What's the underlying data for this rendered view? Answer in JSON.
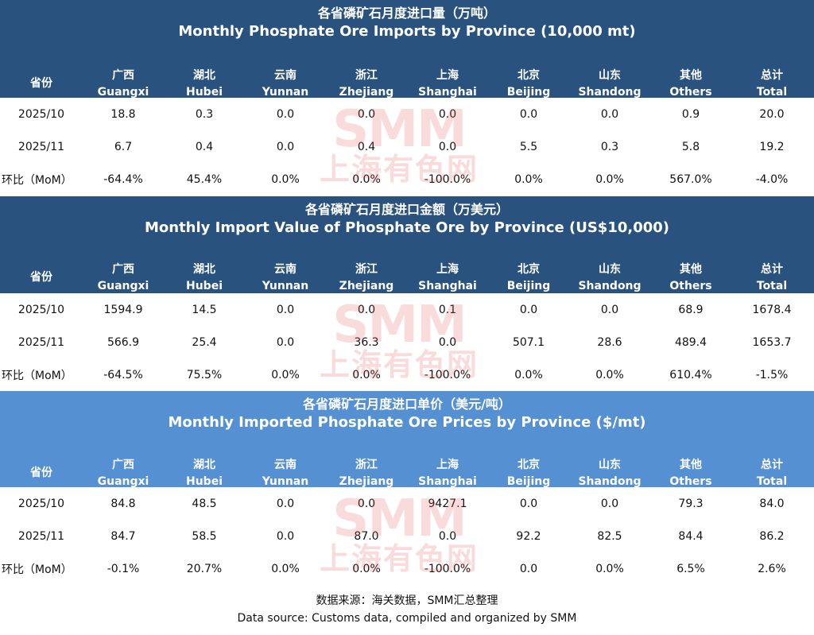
{
  "columns": [
    {
      "cn": "省份",
      "en": ""
    },
    {
      "cn": "广西",
      "en": "Guangxi"
    },
    {
      "cn": "湖北",
      "en": "Hubei"
    },
    {
      "cn": "云南",
      "en": "Yunnan"
    },
    {
      "cn": "浙江",
      "en": "Zhejiang"
    },
    {
      "cn": "上海",
      "en": "Shanghai"
    },
    {
      "cn": "北京",
      "en": "Beijing"
    },
    {
      "cn": "山东",
      "en": "Shandong"
    },
    {
      "cn": "其他",
      "en": "Others"
    },
    {
      "cn": "总计",
      "en": "Total"
    }
  ],
  "tables": [
    {
      "title_cn": "各省磷矿石月度进口量（万吨）",
      "title_en": "Monthly Phosphate Ore Imports by Province (10,000 mt)",
      "rows": [
        [
          "2025/10",
          "18.8",
          "0.3",
          "0.0",
          "0.0",
          "0.0",
          "0.0",
          "0.0",
          "0.9",
          "20.0"
        ],
        [
          "2025/11",
          "6.7",
          "0.4",
          "0.0",
          "0.4",
          "0.0",
          "5.5",
          "0.3",
          "5.8",
          "19.2"
        ],
        [
          "环比（MoM）",
          "-64.4%",
          "45.4%",
          "0.0%",
          "0.0%",
          "-100.0%",
          "0.0%",
          "0.0%",
          "567.0%",
          "-4.0%"
        ]
      ]
    },
    {
      "title_cn": "各省磷矿石月度进口金额（万美元）",
      "title_en": "Monthly Import Value of Phosphate Ore by Province (US$10,000)",
      "rows": [
        [
          "2025/10",
          "1594.9",
          "14.5",
          "0.0",
          "0.0",
          "0.1",
          "0.0",
          "0.0",
          "68.9",
          "1678.4"
        ],
        [
          "2025/11",
          "566.9",
          "25.4",
          "0.0",
          "36.3",
          "0.0",
          "507.1",
          "28.6",
          "489.4",
          "1653.7"
        ],
        [
          "环比（MoM）",
          "-64.5%",
          "75.5%",
          "0.0%",
          "0.0%",
          "-100.0%",
          "0.0%",
          "0.0%",
          "610.4%",
          "-1.5%"
        ]
      ]
    },
    {
      "title_cn": "各省磷矿石月度进口单价（美元/吨）",
      "title_en": "Monthly Imported Phosphate Ore Prices by Province ($/mt)",
      "rows": [
        [
          "2025/10",
          "84.8",
          "48.5",
          "0.0",
          "0.0",
          "9427.1",
          "0.0",
          "0.0",
          "79.3",
          "84.0"
        ],
        [
          "2025/11",
          "84.7",
          "58.5",
          "0.0",
          "87.0",
          "0.0",
          "92.2",
          "82.5",
          "84.4",
          "86.2"
        ],
        [
          "环比（MoM）",
          "-0.1%",
          "20.7%",
          "0.0%",
          "0.0%",
          "-100.0%",
          "0.0",
          "0.0%",
          "6.5%",
          "2.6%"
        ]
      ]
    }
  ],
  "watermark": {
    "en": "SMM",
    "cn": "上海有色网"
  },
  "source": {
    "cn": "数据来源：海关数据，SMM汇总整理",
    "en": "Data source: Customs data, compiled and organized by SMM"
  },
  "colors": {
    "dark_header": "#2a527f",
    "light_header": "#5590d3",
    "watermark": "#e65a5a"
  }
}
